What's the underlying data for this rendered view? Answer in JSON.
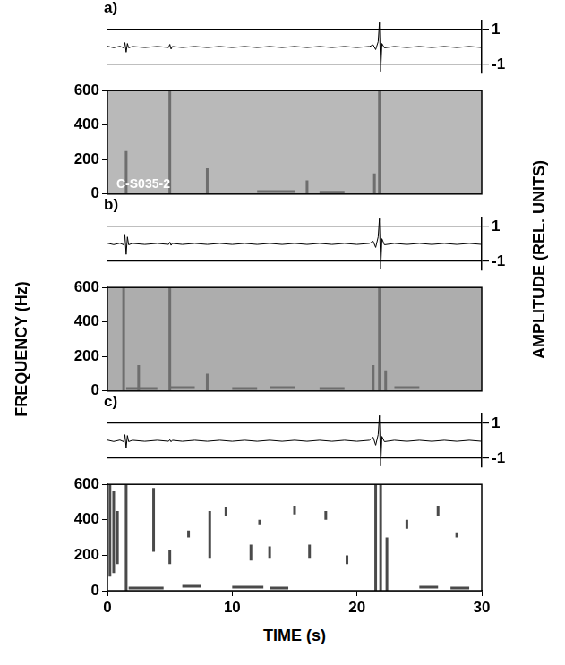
{
  "xlabel": "TIME (s)",
  "ylabel": "FREQUENCY (Hz)",
  "y2label": "AMPLITUDE (REL. UNITS)",
  "chart_data": [
    {
      "type": "line",
      "panel": "a)",
      "color": "#000000",
      "grid": true,
      "tick_labels": "y",
      "xlim": [
        0,
        30
      ],
      "ylim": [
        -1.5,
        1.5
      ],
      "yticks": [
        -1,
        1
      ],
      "x": [
        0,
        0.5,
        1,
        1.3,
        1.4,
        1.5,
        1.6,
        1.7,
        2,
        3,
        4,
        4.9,
        5,
        5.1,
        5.2,
        6,
        7,
        8,
        9,
        10,
        11,
        12,
        13,
        14,
        15,
        16,
        17,
        18,
        19,
        20,
        21,
        21.3,
        21.5,
        21.7,
        21.8,
        21.9,
        22,
        22.2,
        23,
        24,
        25,
        26,
        27,
        28,
        29,
        30
      ],
      "values": [
        0.04,
        -0.04,
        0.04,
        -0.05,
        0.25,
        -0.3,
        0.2,
        -0.05,
        0.03,
        -0.03,
        0.03,
        -0.03,
        0.15,
        -0.12,
        0.03,
        -0.03,
        0.03,
        -0.03,
        0.03,
        -0.03,
        0.03,
        -0.03,
        0.03,
        -0.03,
        0.03,
        -0.03,
        0.03,
        -0.03,
        0.03,
        -0.03,
        0.03,
        0.12,
        -0.15,
        0.3,
        1.4,
        -1.4,
        0.2,
        -0.05,
        0.03,
        -0.03,
        0.03,
        -0.03,
        0.03,
        -0.03,
        0.03,
        -0.03
      ]
    },
    {
      "type": "spectrogram",
      "color": "#6e6e6e",
      "grid": false,
      "tick_labels": "y",
      "annotation": "C-S035-2",
      "xlim": [
        0,
        30
      ],
      "ylim": [
        0,
        600
      ],
      "yticks": [
        0,
        200,
        400,
        600
      ],
      "streaks": [
        [
          1.5,
          0,
          250
        ],
        [
          5.0,
          0,
          600
        ],
        [
          8.0,
          0,
          150
        ],
        [
          16.0,
          0,
          80
        ],
        [
          21.4,
          0,
          120
        ],
        [
          21.8,
          0,
          600
        ]
      ],
      "dashes": [
        [
          12,
          15,
          15
        ],
        [
          17,
          19,
          10
        ]
      ]
    },
    {
      "type": "line",
      "panel": "b)",
      "color": "#000000",
      "grid": true,
      "tick_labels": "y",
      "xlim": [
        0,
        30
      ],
      "ylim": [
        -1.5,
        1.5
      ],
      "yticks": [
        -1,
        1
      ],
      "x": [
        0,
        0.5,
        1,
        1.3,
        1.4,
        1.5,
        1.6,
        1.7,
        2,
        3,
        4,
        4.9,
        5,
        5.1,
        5.2,
        6,
        7,
        8,
        9,
        10,
        11,
        12,
        13,
        14,
        15,
        16,
        17,
        18,
        19,
        20,
        21,
        21.3,
        21.5,
        21.7,
        21.8,
        21.9,
        22,
        22.2,
        23,
        24,
        25,
        26,
        27,
        28,
        29,
        30
      ],
      "values": [
        0.04,
        -0.04,
        0.04,
        -0.05,
        0.5,
        -0.6,
        0.4,
        -0.05,
        0.03,
        -0.03,
        0.03,
        -0.03,
        0.1,
        -0.08,
        0.03,
        -0.03,
        0.03,
        -0.03,
        0.03,
        -0.03,
        0.03,
        -0.03,
        0.03,
        -0.03,
        0.03,
        -0.03,
        0.03,
        -0.03,
        0.03,
        -0.03,
        0.03,
        0.15,
        -0.2,
        0.4,
        1.45,
        -1.45,
        0.3,
        -0.05,
        0.03,
        -0.03,
        0.03,
        -0.03,
        0.03,
        -0.03,
        0.03,
        -0.03
      ]
    },
    {
      "type": "spectrogram",
      "color": "#6e6e6e",
      "grid": false,
      "tick_labels": "y",
      "xlim": [
        0,
        30
      ],
      "ylim": [
        0,
        600
      ],
      "yticks": [
        0,
        200,
        400,
        600
      ],
      "streaks": [
        [
          1.3,
          0,
          600
        ],
        [
          2.5,
          0,
          150
        ],
        [
          5.0,
          0,
          600
        ],
        [
          8.0,
          0,
          100
        ],
        [
          21.3,
          0,
          150
        ],
        [
          21.8,
          0,
          600
        ],
        [
          22.3,
          0,
          120
        ]
      ],
      "dashes": [
        [
          1.5,
          4,
          15
        ],
        [
          5,
          7,
          20
        ],
        [
          10,
          12,
          15
        ],
        [
          13,
          15,
          20
        ],
        [
          17,
          19,
          15
        ],
        [
          23,
          25,
          20
        ]
      ]
    },
    {
      "type": "line",
      "panel": "c)",
      "color": "#000000",
      "grid": true,
      "tick_labels": "y",
      "xlim": [
        0,
        30
      ],
      "ylim": [
        -1.5,
        1.5
      ],
      "yticks": [
        -1,
        1
      ],
      "x": [
        0,
        0.5,
        1,
        1.3,
        1.4,
        1.5,
        1.6,
        1.7,
        2,
        3,
        4,
        4.9,
        5,
        5.1,
        5.2,
        6,
        7,
        8,
        9,
        10,
        11,
        12,
        13,
        14,
        15,
        16,
        17,
        18,
        19,
        20,
        21,
        21.3,
        21.5,
        21.7,
        21.8,
        21.9,
        22,
        22.2,
        23,
        24,
        25,
        26,
        27,
        28,
        29,
        30
      ],
      "values": [
        0.04,
        -0.04,
        0.04,
        -0.05,
        0.35,
        -0.4,
        0.3,
        -0.05,
        0.03,
        -0.03,
        0.03,
        -0.03,
        0.06,
        -0.06,
        0.03,
        -0.03,
        0.03,
        -0.03,
        0.03,
        -0.03,
        0.03,
        -0.03,
        0.03,
        -0.03,
        0.03,
        -0.03,
        0.03,
        -0.03,
        0.03,
        -0.03,
        0.03,
        0.2,
        -0.25,
        0.35,
        1.45,
        -1.45,
        0.25,
        -0.05,
        0.03,
        -0.03,
        0.03,
        -0.03,
        0.03,
        -0.03,
        0.03,
        -0.03
      ]
    },
    {
      "type": "spectrogram",
      "color": "#4a4a4a",
      "grid": false,
      "xlim": [
        0,
        30
      ],
      "ylim": [
        0,
        600
      ],
      "xticks": [
        0,
        10,
        20,
        30
      ],
      "yticks": [
        0,
        200,
        400,
        600
      ],
      "streaks": [
        [
          0.2,
          80,
          600
        ],
        [
          0.5,
          100,
          560
        ],
        [
          0.8,
          150,
          450
        ],
        [
          1.5,
          0,
          600
        ],
        [
          3.7,
          220,
          580
        ],
        [
          5.0,
          150,
          230
        ],
        [
          6.5,
          300,
          340
        ],
        [
          8.2,
          180,
          450
        ],
        [
          9.5,
          420,
          470
        ],
        [
          11.5,
          170,
          260
        ],
        [
          12.2,
          370,
          400
        ],
        [
          13.0,
          180,
          250
        ],
        [
          15.0,
          430,
          480
        ],
        [
          16.2,
          180,
          260
        ],
        [
          17.5,
          400,
          450
        ],
        [
          19.2,
          150,
          200
        ],
        [
          21.5,
          0,
          600
        ],
        [
          21.9,
          0,
          600
        ],
        [
          22.4,
          0,
          300
        ],
        [
          24.0,
          350,
          400
        ],
        [
          26.5,
          420,
          480
        ],
        [
          28.0,
          300,
          330
        ]
      ],
      "dashes": [
        [
          1.7,
          4.5,
          15
        ],
        [
          6,
          7.5,
          25
        ],
        [
          10,
          12.5,
          20
        ],
        [
          13,
          14.5,
          15
        ],
        [
          25,
          26.5,
          20
        ],
        [
          27.5,
          29,
          15
        ]
      ]
    }
  ]
}
